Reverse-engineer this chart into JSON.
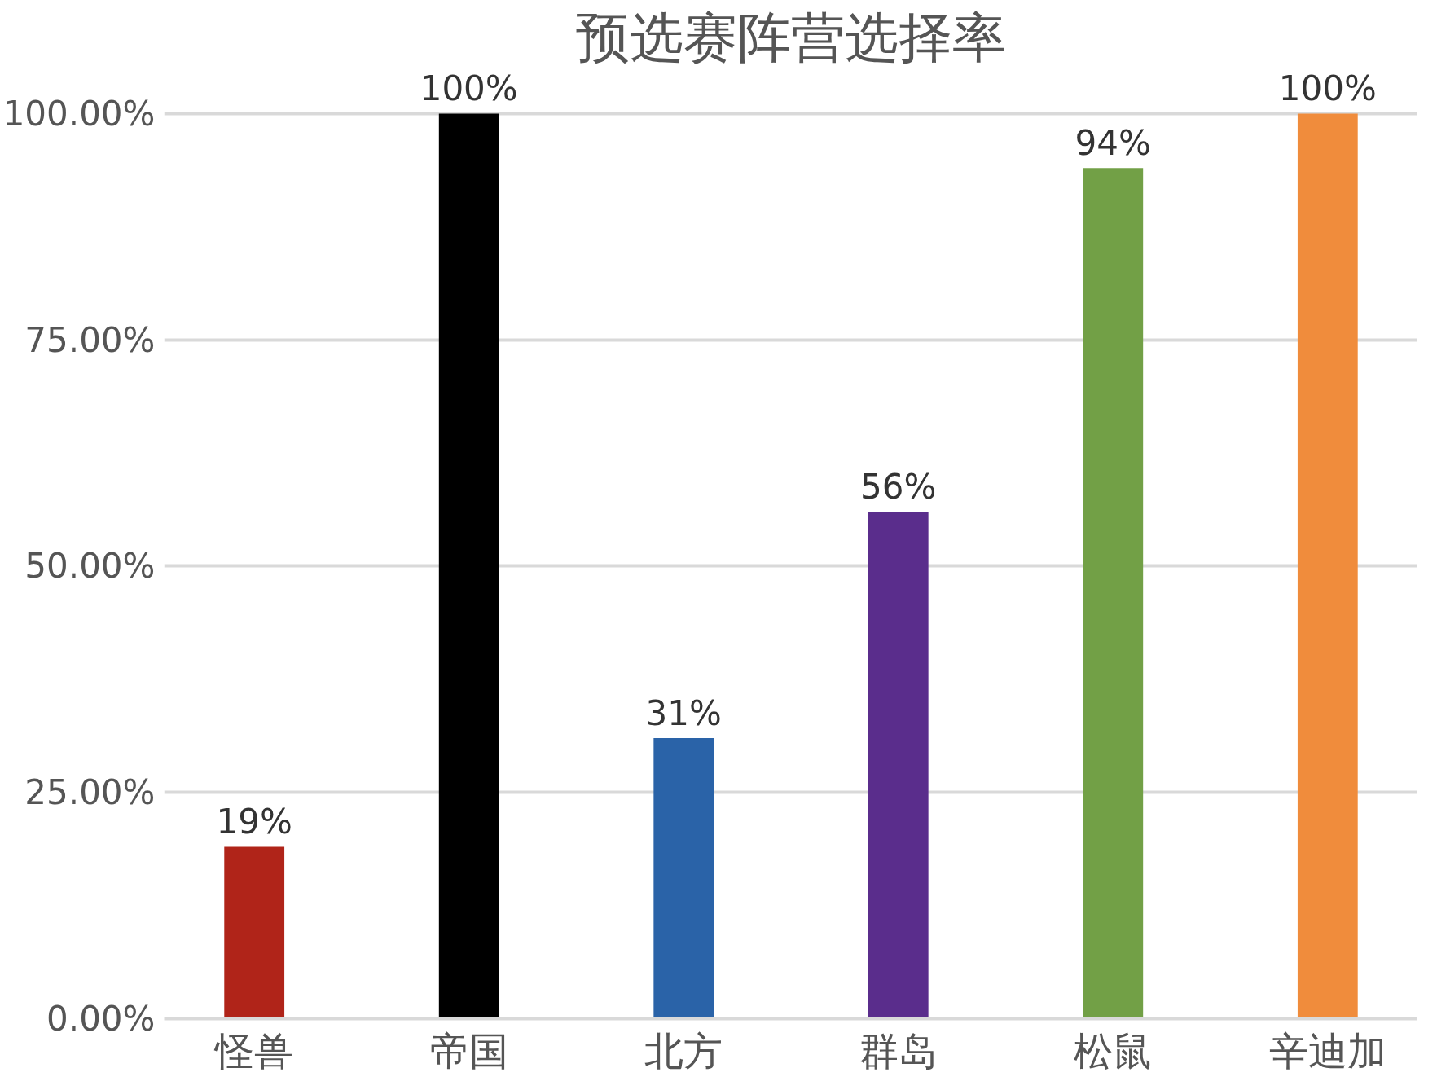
{
  "chart_data": {
    "type": "bar",
    "title": "预选赛阵营选择率",
    "categories": [
      "怪兽",
      "帝国",
      "北方",
      "群岛",
      "松鼠",
      "辛迪加"
    ],
    "values": [
      19,
      100,
      31,
      56,
      94,
      100
    ],
    "colors": [
      "#b02419",
      "#000000",
      "#2a63a8",
      "#5a2d8c",
      "#72a046",
      "#f08c3c"
    ],
    "value_labels": [
      "19%",
      "100%",
      "31%",
      "56%",
      "94%",
      "100%"
    ],
    "ylim": [
      0,
      100
    ],
    "yticks": [
      {
        "value": 0,
        "label": "0.00%"
      },
      {
        "value": 25,
        "label": "25.00%"
      },
      {
        "value": 50,
        "label": "50.00%"
      },
      {
        "value": 75,
        "label": "75.00%"
      },
      {
        "value": 100,
        "label": "100.00%"
      }
    ],
    "grid": "y"
  }
}
